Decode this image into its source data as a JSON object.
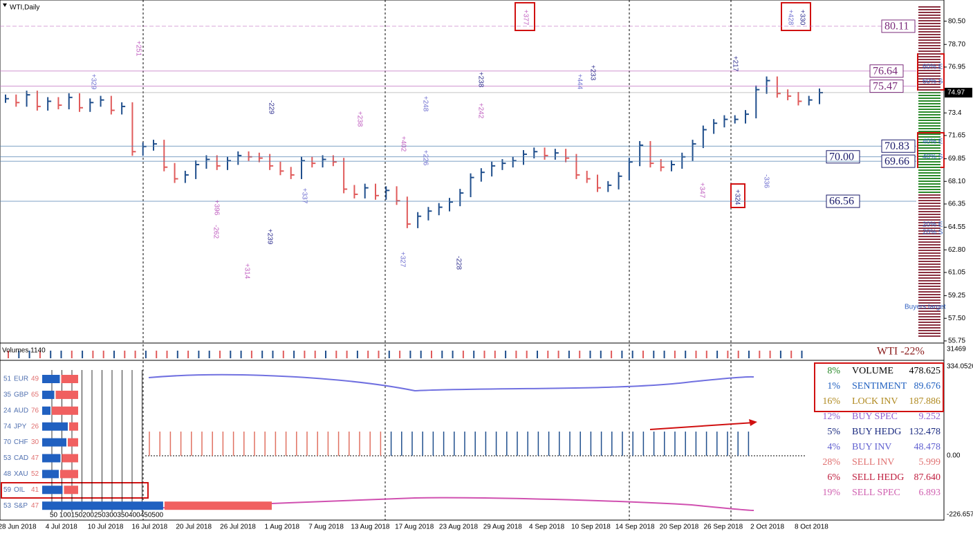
{
  "title": "WTI,Daily",
  "price_axis": {
    "ylim": [
      55.64,
      82.14
    ],
    "ticks": [
      {
        "value": 80.5,
        "label": "80.50"
      },
      {
        "value": 78.7,
        "label": "78.70"
      },
      76.95,
      73.4,
      71.65,
      69.85,
      {
        "value": 68.1,
        "label": "68.10"
      },
      66.35,
      64.55,
      {
        "value": 62.8,
        "label": "62.80"
      },
      61.05,
      59.25,
      {
        "value": 57.5,
        "label": "57.50"
      },
      55.75
    ]
  },
  "last_price": 74.97,
  "levels": [
    80.11,
    76.64,
    75.47,
    70.83,
    {
      "value": 70,
      "label": "70.00"
    },
    69.66,
    66.56
  ],
  "dates": [
    "28 Jun 2018",
    "4 Jul 2018",
    "10 Jul 2018",
    "16 Jul 2018",
    "20 Jul 2018",
    "26 Jul 2018",
    "1 Aug 2018",
    "7 Aug 2018",
    "13 Aug 2018",
    "17 Aug 2018",
    "23 Aug 2018",
    "29 Aug 2018",
    "4 Sep 2018",
    "10 Sep 2018",
    "14 Sep 2018",
    "20 Sep 2018",
    "26 Sep 2018",
    "2 Oct 2018",
    "8 Oct 2018"
  ],
  "closes": [
    74.5,
    74.2,
    74.8,
    73.9,
    74.3,
    74.0,
    74.6,
    73.8,
    74.2,
    74.4,
    73.6,
    73.9,
    70.4,
    70.8,
    71.0,
    69.2,
    68.3,
    68.6,
    69.4,
    69.8,
    69.3,
    69.7,
    70.1,
    70.0,
    69.9,
    69.3,
    68.9,
    68.6,
    69.7,
    69.5,
    69.8,
    69.6,
    67.5,
    67.1,
    67.6,
    67.0,
    67.4,
    66.6,
    64.8,
    65.4,
    65.8,
    66.1,
    66.5,
    67.2,
    68.4,
    68.8,
    69.3,
    69.5,
    69.7,
    70.2,
    70.4,
    70.1,
    70.3,
    69.9,
    68.6,
    68.3,
    67.6,
    67.8,
    68.5,
    69.6,
    70.9,
    69.5,
    69.2,
    69.4,
    70.0,
    71.0,
    72.1,
    72.6,
    72.9,
    72.9,
    73.3,
    75.2,
    75.9,
    74.9,
    74.7,
    74.3,
    74.4,
    74.97
  ],
  "annotations": [
    "+377",
    "+428",
    "+330",
    "+251",
    "+329",
    "-229",
    "+238",
    "+248",
    "+238",
    "+242",
    "+444",
    "+233",
    "+402",
    "+226",
    "+217",
    "+396",
    "+337",
    "+239",
    "+314",
    "+327",
    "-228",
    "-262",
    "-336",
    "+324",
    "+347"
  ],
  "zone_labels": [
    "60% E",
    "60% S",
    "40% E",
    "40% S",
    "20% E",
    "20% S"
  ],
  "buyers_target": "Buyers target",
  "volume_label": "Volumes 1140",
  "volume_axis": "31469",
  "badge": "WTI -22%",
  "osc_axis": [
    "334.0526",
    "0.00",
    "-226.6574"
  ],
  "currency_strength": {
    "rows": [
      {
        "left": 51,
        "name": "EUR",
        "right": 49
      },
      {
        "left": 35,
        "name": "GBP",
        "right": 65
      },
      {
        "left": 24,
        "name": "AUD",
        "right": 76
      },
      {
        "left": 74,
        "name": "JPY",
        "right": 26
      },
      {
        "left": 70,
        "name": "CHF",
        "right": 30
      },
      {
        "left": 53,
        "name": "CAD",
        "right": 47
      },
      {
        "left": 48,
        "name": "XAU",
        "right": 52
      },
      {
        "left": 59,
        "name": "OIL",
        "right": 41
      },
      {
        "left": 53,
        "name": "S&P",
        "right": 47
      }
    ],
    "scale": "50 100150200250300350400450500"
  },
  "stats": [
    {
      "pct": "8%",
      "label": "VOLUME",
      "value": "478.625"
    },
    {
      "pct": "1%",
      "label": "SENTIMENT",
      "value": "89.676"
    },
    {
      "pct": "16%",
      "label": "LOCK INV",
      "value": "187.886"
    },
    {
      "pct": "12%",
      "label": "BUY SPEC",
      "value": "9.252"
    },
    {
      "pct": "5%",
      "label": "BUY HEDG",
      "value": "132.478"
    },
    {
      "pct": "4%",
      "label": "BUY INV",
      "value": "48.478"
    },
    {
      "pct": "28%",
      "label": "SELL INV",
      "value": "5.999"
    },
    {
      "pct": "6%",
      "label": "SELL HEDG",
      "value": "87.640"
    },
    {
      "pct": "19%",
      "label": "SELL SPEC",
      "value": "6.893"
    }
  ]
}
